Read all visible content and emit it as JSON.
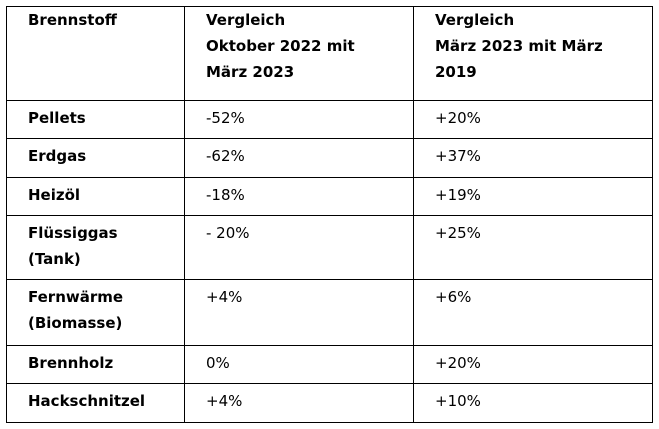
{
  "table": {
    "headers": {
      "fuel": "Brennstoff",
      "col2_line1": "Vergleich",
      "col2_line2": "Oktober 2022 mit",
      "col2_line3": "März 2023",
      "col3_line1": "Vergleich",
      "col3_line2": "März 2023 mit März",
      "col3_line3": "2019"
    },
    "rows": [
      {
        "fuel_line1": "Pellets",
        "fuel_line2": "",
        "oct_mar": "-52%",
        "mar_2019": "+20%"
      },
      {
        "fuel_line1": "Erdgas",
        "fuel_line2": "",
        "oct_mar": "-62%",
        "mar_2019": "+37%"
      },
      {
        "fuel_line1": "Heizöl",
        "fuel_line2": "",
        "oct_mar": "-18%",
        "mar_2019": "+19%"
      },
      {
        "fuel_line1": "Flüssiggas",
        "fuel_line2": "(Tank)",
        "oct_mar": "- 20%",
        "mar_2019": "+25%"
      },
      {
        "fuel_line1": "Fernwärme",
        "fuel_line2": "(Biomasse)",
        "oct_mar": "+4%",
        "mar_2019": "+6%"
      },
      {
        "fuel_line1": "Brennholz",
        "fuel_line2": "",
        "oct_mar": "0%",
        "mar_2019": "+20%"
      },
      {
        "fuel_line1": "Hackschnitzel",
        "fuel_line2": "",
        "oct_mar": "+4%",
        "mar_2019": "+10%"
      }
    ]
  }
}
